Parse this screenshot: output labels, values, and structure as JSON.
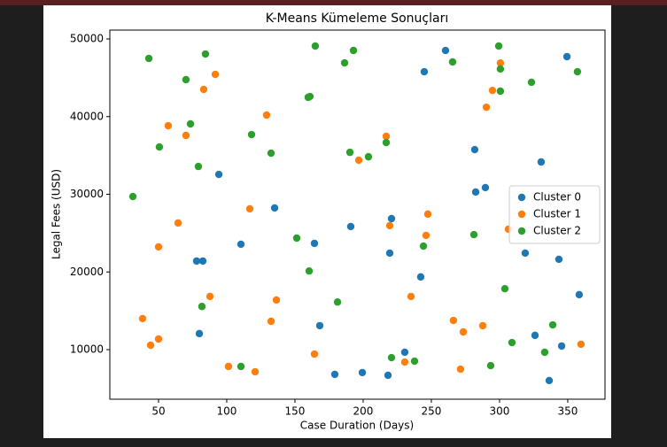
{
  "chart_data": {
    "type": "scatter",
    "title": "K-Means Kümeleme Sonuçları",
    "x_label": "Case Duration (Days)",
    "y_label": "Legal Fees (USD)",
    "xlim": [
      14.3,
      377.3
    ],
    "ylim": [
      3620,
      51140
    ],
    "xticks": [
      50,
      100,
      150,
      200,
      250,
      300,
      350
    ],
    "yticks": [
      10000,
      20000,
      30000,
      40000,
      50000
    ],
    "grid": false,
    "legend_position": "center right",
    "series": [
      {
        "name": "Cluster 0",
        "color": "#1f77b4",
        "x": [
          260.4,
          244.8,
          349.4,
          281.8,
          330.5,
          289.6,
          282.5,
          94.2,
          135.1,
          220.8,
          190.9,
          164.3,
          110.4,
          219.5,
          318.8,
          343.5,
          77.9,
          82.5,
          242.2,
          358.4,
          168.2,
          79.9,
          326.0,
          345.5,
          230.5,
          179.2,
          199.4,
          218.2,
          336.4
        ],
        "values": [
          48510,
          45780,
          47720,
          35750,
          34160,
          30860,
          30290,
          32560,
          28240,
          26870,
          25850,
          23680,
          23570,
          22430,
          22430,
          21630,
          21410,
          21410,
          19360,
          17080,
          13090,
          12070,
          11840,
          10470,
          9670,
          6820,
          7050,
          6700,
          6020
        ]
      },
      {
        "name": "Cluster 1",
        "color": "#ff7f0e",
        "x": [
          300.6,
          294.8,
          290.3,
          91.6,
          83.1,
          129.2,
          57.1,
          70.1,
          216.9,
          196.8,
          116.9,
          247.4,
          64.3,
          219.5,
          306.5,
          246.1,
          50.0,
          87.7,
          235.1,
          136.4,
          38.3,
          132.5,
          266.2,
          287.7,
          273.4,
          50.0,
          44.2,
          359.7,
          164.3,
          101.3,
          120.8,
          230.5,
          271.4
        ],
        "values": [
          46900,
          43370,
          41210,
          45440,
          43500,
          40200,
          38830,
          37580,
          37470,
          34390,
          28130,
          27450,
          26310,
          25960,
          25510,
          24710,
          23230,
          16850,
          16850,
          16390,
          14000,
          13650,
          13760,
          13080,
          12280,
          11370,
          10570,
          10690,
          9430,
          7840,
          7150,
          8400,
          7490
        ]
      },
      {
        "name": "Cluster 2",
        "color": "#2ca02c",
        "x": [
          42.9,
          84.4,
          164.9,
          192.9,
          186.4,
          265.6,
          299.4,
          300.6,
          300.6,
          323.4,
          357.1,
          70.1,
          73.4,
          159.7,
          161.0,
          118.2,
          50.6,
          132.5,
          79.2,
          190.3,
          203.9,
          216.9,
          31.2,
          151.3,
          244.2,
          281.2,
          160.4,
          303.9,
          81.8,
          181.2,
          339.0,
          309.1,
          333.1,
          110.4,
          220.8,
          237.7,
          293.5
        ],
        "values": [
          47490,
          48060,
          49090,
          48520,
          46920,
          47040,
          49090,
          46130,
          43280,
          44420,
          45780,
          44760,
          39060,
          42480,
          42590,
          37690,
          36090,
          35290,
          33580,
          35400,
          34830,
          36660,
          29710,
          24360,
          23330,
          24810,
          20120,
          17840,
          15560,
          16130,
          13190,
          10910,
          9660,
          7840,
          8970,
          8510,
          7940
        ]
      }
    ]
  }
}
